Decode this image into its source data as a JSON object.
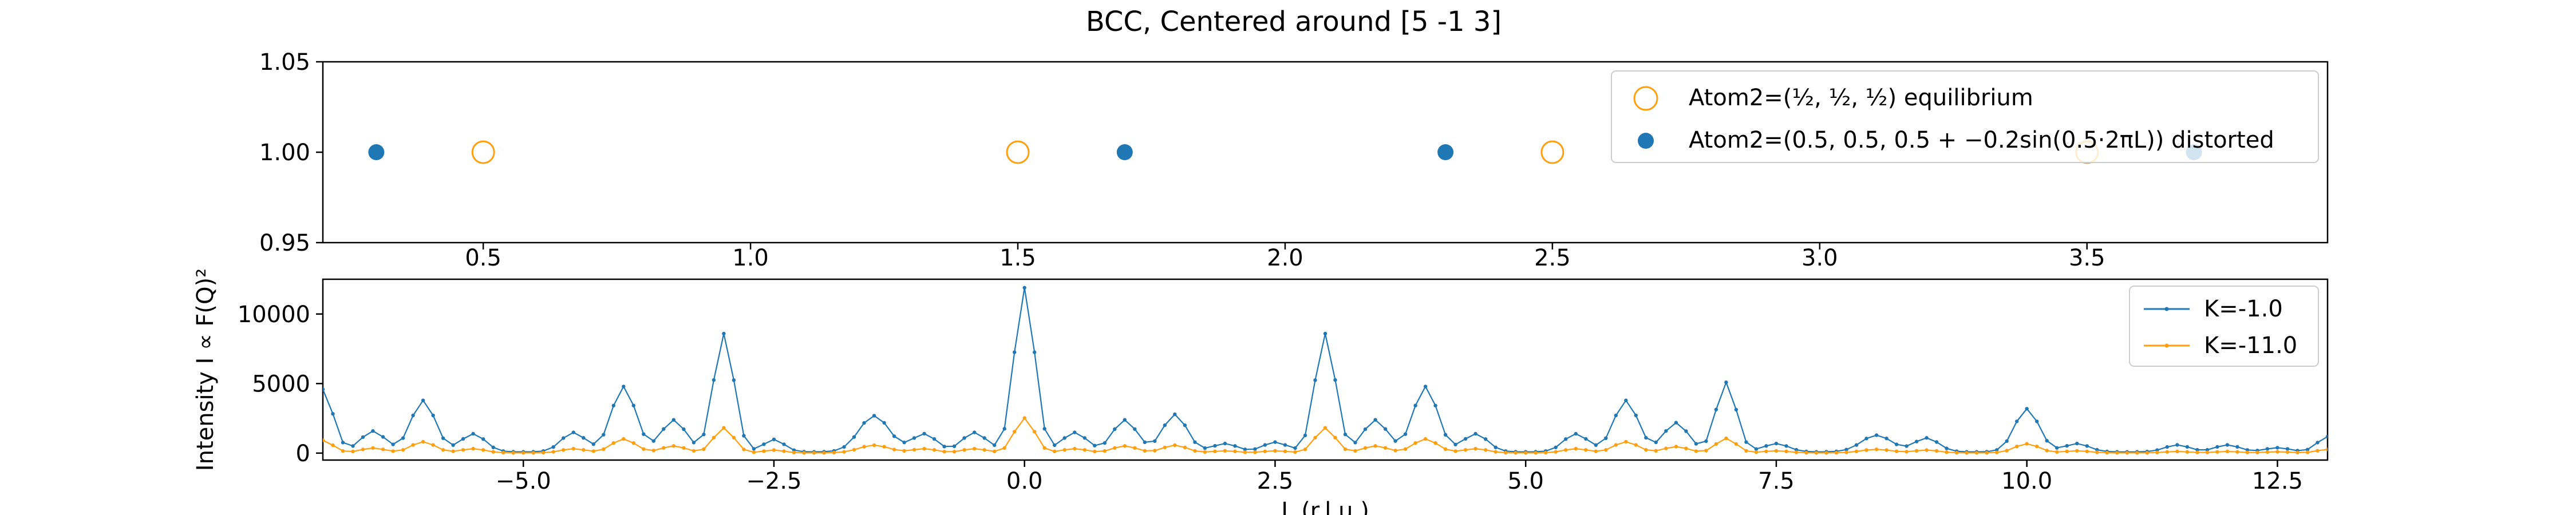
{
  "figure": {
    "title": "BCC, Centered around [5 -1 3]"
  },
  "colors": {
    "blue": "#1f77b4",
    "orange": "#ff9f0e",
    "axes": "#000000"
  },
  "chart_data": [
    {
      "type": "scatter",
      "title": "BCC, Centered around [5 -1 3]",
      "xlabel": "",
      "ylabel": "",
      "xlim": [
        0.2,
        3.95
      ],
      "ylim": [
        0.95,
        1.05
      ],
      "xticks": [
        0.5,
        1.0,
        1.5,
        2.0,
        2.5,
        3.0,
        3.5
      ],
      "xtick_labels": [
        "0.5",
        "1.0",
        "1.5",
        "2.0",
        "2.5",
        "3.0",
        "3.5"
      ],
      "yticks": [
        0.95,
        1.0,
        1.05
      ],
      "ytick_labels": [
        "0.95",
        "1.00",
        "1.05"
      ],
      "legend": {
        "placement": "top-right",
        "entries": [
          {
            "prefix": "Atom2=(",
            "suffix": ") equilibrium",
            "marker": "open-circle"
          },
          {
            "text": "Atom2=(0.5, 0.5, 0.5 + −0.2sin(0.5·2πL)) distorted",
            "marker": "filled-circle"
          }
        ]
      },
      "series": [
        {
          "name": "equilibrium",
          "marker": "open-circle",
          "x": [
            0.5,
            1.5,
            2.5,
            3.5
          ],
          "y": [
            1.0,
            1.0,
            1.0,
            1.0
          ]
        },
        {
          "name": "distorted",
          "marker": "filled-circle",
          "x": [
            0.3,
            1.7,
            2.3,
            3.7
          ],
          "y": [
            1.0,
            1.0,
            1.0,
            1.0
          ]
        }
      ]
    },
    {
      "type": "line",
      "xlabel": "L (r.l.u.)",
      "ylabel": "Intensity I ∝ F(Q)²",
      "xlim": [
        -7.0,
        13.0
      ],
      "ylim": [
        -500,
        12500
      ],
      "xticks": [
        -5.0,
        -2.5,
        0.0,
        2.5,
        5.0,
        7.5,
        10.0,
        12.5
      ],
      "xtick_labels": [
        "−5.0",
        "−2.5",
        "0.0",
        "2.5",
        "5.0",
        "7.5",
        "10.0",
        "12.5"
      ],
      "yticks": [
        0,
        5000,
        10000
      ],
      "ytick_labels": [
        "0",
        "5000",
        "10000"
      ],
      "legend": {
        "placement": "top-right"
      },
      "step": 0.1,
      "series": [
        {
          "name": "K=-1.0",
          "peaks": [
            [
              -7.0,
              4500,
              0.1
            ],
            [
              -6.5,
              1500,
              0.12
            ],
            [
              -6.0,
              3700,
              0.12
            ],
            [
              -5.5,
              1300,
              0.12
            ],
            [
              -4.5,
              1400,
              0.12
            ],
            [
              -4.0,
              4700,
              0.12
            ],
            [
              -3.5,
              2300,
              0.12
            ],
            [
              -3.0,
              8500,
              0.1
            ],
            [
              -2.5,
              900,
              0.1
            ],
            [
              -1.5,
              2600,
              0.15
            ],
            [
              -1.0,
              1300,
              0.12
            ],
            [
              -0.5,
              1400,
              0.12
            ],
            [
              0.0,
              11800,
              0.1
            ],
            [
              0.5,
              1400,
              0.12
            ],
            [
              1.0,
              2300,
              0.12
            ],
            [
              1.5,
              2700,
              0.12
            ],
            [
              2.0,
              600,
              0.12
            ],
            [
              2.5,
              700,
              0.12
            ],
            [
              3.0,
              8500,
              0.1
            ],
            [
              3.5,
              2300,
              0.12
            ],
            [
              4.0,
              4700,
              0.12
            ],
            [
              4.5,
              1300,
              0.12
            ],
            [
              5.5,
              1300,
              0.12
            ],
            [
              6.0,
              3700,
              0.12
            ],
            [
              6.5,
              2100,
              0.12
            ],
            [
              7.0,
              5000,
              0.1
            ],
            [
              7.5,
              600,
              0.12
            ],
            [
              8.5,
              1200,
              0.15
            ],
            [
              9.0,
              1000,
              0.12
            ],
            [
              10.0,
              3100,
              0.12
            ],
            [
              10.5,
              600,
              0.12
            ],
            [
              11.5,
              500,
              0.12
            ],
            [
              12.0,
              500,
              0.12
            ],
            [
              12.5,
              300,
              0.12
            ],
            [
              13.0,
              1100,
              0.1
            ]
          ]
        },
        {
          "name": "K=-11.0",
          "peaks": [
            [
              -7.0,
              900,
              0.1
            ],
            [
              -6.5,
              350,
              0.12
            ],
            [
              -6.0,
              800,
              0.12
            ],
            [
              -5.5,
              300,
              0.12
            ],
            [
              -4.5,
              300,
              0.12
            ],
            [
              -4.0,
              1000,
              0.12
            ],
            [
              -3.5,
              500,
              0.12
            ],
            [
              -3.0,
              1800,
              0.1
            ],
            [
              -2.5,
              200,
              0.1
            ],
            [
              -1.5,
              550,
              0.15
            ],
            [
              -1.0,
              300,
              0.12
            ],
            [
              -0.5,
              300,
              0.12
            ],
            [
              0.0,
              2500,
              0.1
            ],
            [
              0.5,
              300,
              0.12
            ],
            [
              1.0,
              500,
              0.12
            ],
            [
              1.5,
              550,
              0.12
            ],
            [
              2.0,
              150,
              0.12
            ],
            [
              2.5,
              150,
              0.12
            ],
            [
              3.0,
              1800,
              0.1
            ],
            [
              3.5,
              500,
              0.12
            ],
            [
              4.0,
              1000,
              0.12
            ],
            [
              4.5,
              300,
              0.12
            ],
            [
              5.5,
              300,
              0.12
            ],
            [
              6.0,
              800,
              0.12
            ],
            [
              6.5,
              450,
              0.12
            ],
            [
              7.0,
              1050,
              0.1
            ],
            [
              7.5,
              150,
              0.12
            ],
            [
              8.5,
              250,
              0.15
            ],
            [
              9.0,
              200,
              0.12
            ],
            [
              10.0,
              650,
              0.12
            ],
            [
              10.5,
              150,
              0.12
            ],
            [
              11.5,
              100,
              0.12
            ],
            [
              12.0,
              100,
              0.12
            ],
            [
              12.5,
              80,
              0.12
            ],
            [
              13.0,
              250,
              0.1
            ]
          ]
        }
      ]
    }
  ]
}
